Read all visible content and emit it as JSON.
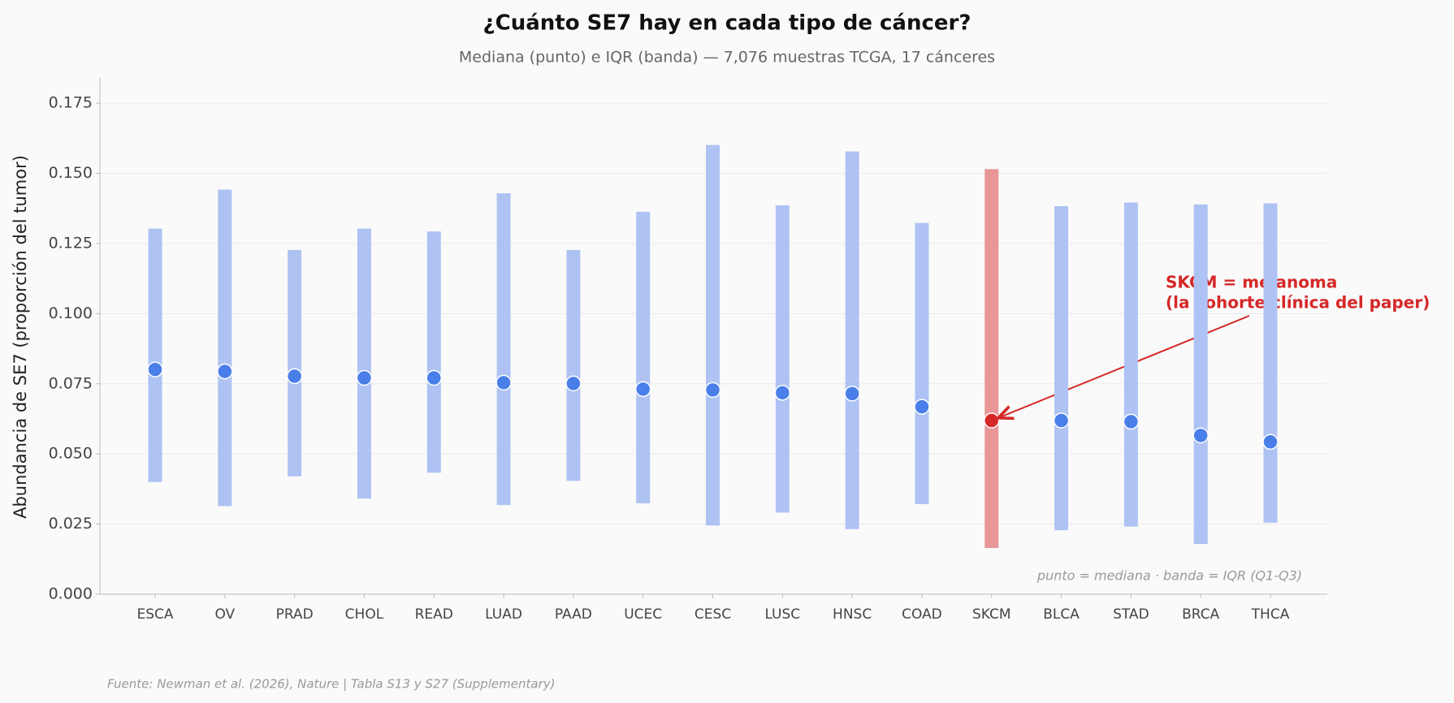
{
  "chart_data": {
    "type": "range",
    "title": "¿Cuánto SE7 hay en cada tipo de cáncer?",
    "subtitle": "Mediana (punto) e IQR (banda) — 7,076 muestras TCGA, 17 cánceres",
    "ylabel": "Abundancia de SE7 (proporción del tumor)",
    "categories": [
      "ESCA",
      "OV",
      "PRAD",
      "CHOL",
      "READ",
      "LUAD",
      "PAAD",
      "UCEC",
      "CESC",
      "LUSC",
      "HNSC",
      "COAD",
      "SKCM",
      "BLCA",
      "STAD",
      "BRCA",
      "THCA"
    ],
    "median": [
      0.0801,
      0.0794,
      0.0777,
      0.0771,
      0.0771,
      0.0754,
      0.0751,
      0.0731,
      0.0728,
      0.0718,
      0.0715,
      0.0668,
      0.0619,
      0.0619,
      0.0615,
      0.0566,
      0.0543
    ],
    "q1": [
      0.04,
      0.0314,
      0.042,
      0.0341,
      0.0433,
      0.0318,
      0.0404,
      0.0324,
      0.0245,
      0.0291,
      0.0232,
      0.0321,
      0.0165,
      0.0228,
      0.0241,
      0.0179,
      0.0255
    ],
    "q3": [
      0.1303,
      0.1442,
      0.1227,
      0.1303,
      0.1293,
      0.1429,
      0.1227,
      0.1363,
      0.1601,
      0.1386,
      0.1578,
      0.1323,
      0.1515,
      0.1383,
      0.1396,
      0.1389,
      0.1393
    ],
    "band_color": "#aec3f3",
    "point_color": "#4a7ee8",
    "highlight": "SKCM",
    "highlight_band_color": "#e89696",
    "highlight_point_color": "#d62828",
    "ylim": [
      0,
      0.184
    ],
    "yticks": [
      {
        "value": 0,
        "label": "0.000"
      },
      {
        "value": 0.025,
        "label": "0.025"
      },
      {
        "value": 0.05,
        "label": "0.050"
      },
      {
        "value": 0.075,
        "label": "0.075"
      },
      {
        "value": 0.1,
        "label": "0.100"
      },
      {
        "value": 0.125,
        "label": "0.125"
      },
      {
        "value": 0.15,
        "label": "0.150"
      },
      {
        "value": 0.175,
        "label": "0.175"
      }
    ],
    "grid": true,
    "annotation": [
      "SKCM = melanoma",
      "(la cohorte clínica del paper)"
    ],
    "note": "punto = mediana · banda = IQR (Q1-Q3)",
    "source": "Fuente: Newman et al. (2026), Nature | Tabla S13 y S27 (Supplementary)"
  }
}
